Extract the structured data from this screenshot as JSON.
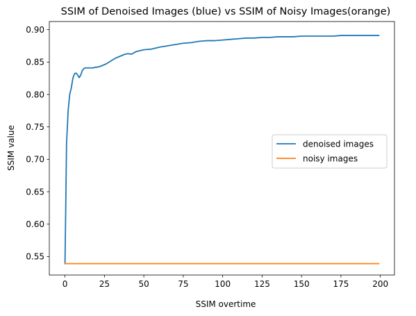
{
  "chart_data": {
    "type": "line",
    "title": "SSIM of Denoised Images (blue) vs SSIM of Noisy Images(orange)",
    "xlabel": "SSIM overtime",
    "ylabel": "SSIM value",
    "xlim": [
      -9.95,
      208.95
    ],
    "ylim": [
      0.5215,
      0.9125
    ],
    "xticks": [
      0,
      25,
      50,
      75,
      100,
      125,
      150,
      175,
      200
    ],
    "xtick_labels": [
      "0",
      "25",
      "50",
      "75",
      "100",
      "125",
      "150",
      "175",
      "200"
    ],
    "yticks": [
      0.55,
      0.6,
      0.65,
      0.7,
      0.75,
      0.8,
      0.85,
      0.9
    ],
    "ytick_labels": [
      "0.55",
      "0.60",
      "0.65",
      "0.70",
      "0.75",
      "0.80",
      "0.85",
      "0.90"
    ],
    "grid": false,
    "legend_position": "center-right",
    "series": [
      {
        "name": "denoised images",
        "color": "#1f77b4",
        "x": [
          0,
          1,
          2,
          3,
          4,
          5,
          6,
          7,
          8,
          9,
          10,
          11,
          12,
          13,
          14,
          15,
          16,
          17,
          18,
          19,
          20,
          22,
          24,
          26,
          28,
          30,
          32,
          34,
          36,
          38,
          40,
          42,
          45,
          50,
          55,
          60,
          65,
          70,
          75,
          80,
          85,
          90,
          95,
          100,
          105,
          110,
          115,
          120,
          125,
          130,
          135,
          140,
          145,
          150,
          155,
          160,
          165,
          170,
          175,
          180,
          185,
          190,
          195,
          199
        ],
        "y": [
          0.539,
          0.725,
          0.775,
          0.8,
          0.81,
          0.825,
          0.832,
          0.833,
          0.83,
          0.826,
          0.83,
          0.837,
          0.84,
          0.841,
          0.841,
          0.841,
          0.841,
          0.841,
          0.841,
          0.842,
          0.842,
          0.843,
          0.845,
          0.847,
          0.85,
          0.853,
          0.856,
          0.858,
          0.86,
          0.862,
          0.863,
          0.862,
          0.866,
          0.869,
          0.87,
          0.873,
          0.875,
          0.877,
          0.879,
          0.88,
          0.882,
          0.883,
          0.883,
          0.884,
          0.885,
          0.886,
          0.887,
          0.887,
          0.888,
          0.888,
          0.889,
          0.889,
          0.889,
          0.89,
          0.89,
          0.89,
          0.89,
          0.89,
          0.891,
          0.891,
          0.891,
          0.891,
          0.891,
          0.891
        ]
      },
      {
        "name": "noisy images",
        "color": "#ff7f0e",
        "x": [
          0,
          199
        ],
        "y": [
          0.539,
          0.539
        ]
      }
    ]
  }
}
